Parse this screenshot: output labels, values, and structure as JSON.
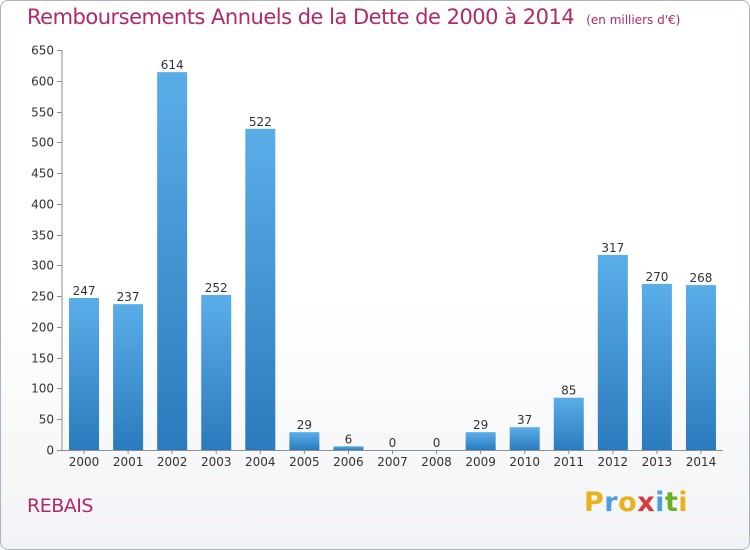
{
  "chart_data": {
    "type": "bar",
    "title": "Remboursements Annuels de la Dette de 2000 à 2014",
    "unit_note": "(en milliers d'€)",
    "categories": [
      "2000",
      "2001",
      "2002",
      "2003",
      "2004",
      "2005",
      "2006",
      "2007",
      "2008",
      "2009",
      "2010",
      "2011",
      "2012",
      "2013",
      "2014"
    ],
    "values": [
      247,
      237,
      614,
      252,
      522,
      29,
      6,
      0,
      0,
      29,
      37,
      85,
      317,
      270,
      268
    ],
    "ylim": [
      0,
      650
    ],
    "yticks": [
      0,
      50,
      100,
      150,
      200,
      250,
      300,
      350,
      400,
      450,
      500,
      550,
      600,
      650
    ],
    "grid": false,
    "data_labels": true,
    "bar_color_top": "#5aaee8",
    "bar_color_bottom": "#2a7bbd"
  },
  "footer": {
    "commune": "REBAIS",
    "logo_letters": [
      {
        "ch": "P",
        "color": "#e8b21c"
      },
      {
        "ch": "r",
        "color": "#4a9fe0"
      },
      {
        "ch": "o",
        "color": "#e8b21c"
      },
      {
        "ch": "x",
        "color": "#d63a3a"
      },
      {
        "ch": "i",
        "color": "#4a9fe0"
      },
      {
        "ch": "t",
        "color": "#6ab023"
      },
      {
        "ch": "i",
        "color": "#e8b21c"
      }
    ]
  }
}
